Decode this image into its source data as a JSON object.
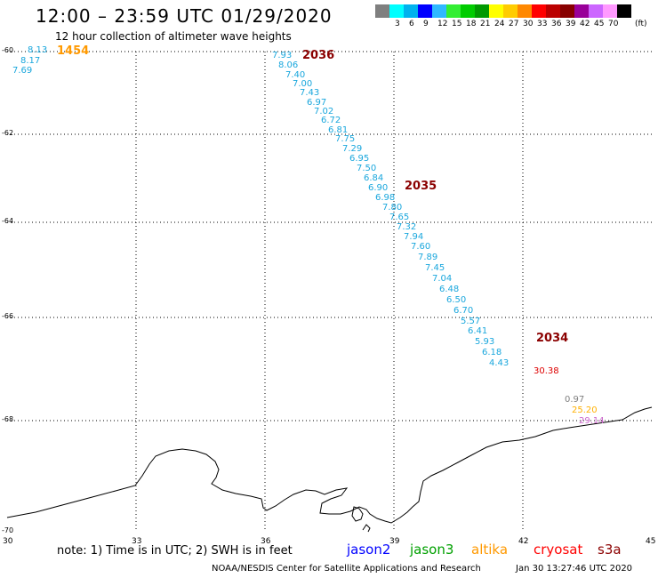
{
  "header": {
    "title": "12:00 – 23:59 UTC 01/29/2020",
    "subtitle": "12 hour collection of altimeter wave heights"
  },
  "colorbar": {
    "unit": "(ft)",
    "bins": [
      {
        "label": "",
        "color": "#7f7f7f"
      },
      {
        "label": "3",
        "color": "#00ffff"
      },
      {
        "label": "6",
        "color": "#00b2ee"
      },
      {
        "label": "9",
        "color": "#0000ff"
      },
      {
        "label": "12",
        "color": "#2fb8ff"
      },
      {
        "label": "15",
        "color": "#33ee33"
      },
      {
        "label": "18",
        "color": "#00cc00"
      },
      {
        "label": "21",
        "color": "#009900"
      },
      {
        "label": "24",
        "color": "#ffff00"
      },
      {
        "label": "27",
        "color": "#ffcc00"
      },
      {
        "label": "30",
        "color": "#ff8800"
      },
      {
        "label": "33",
        "color": "#ff0000"
      },
      {
        "label": "36",
        "color": "#bb0000"
      },
      {
        "label": "39",
        "color": "#880000"
      },
      {
        "label": "42",
        "color": "#990099"
      },
      {
        "label": "45",
        "color": "#cc66ff"
      },
      {
        "label": "70",
        "color": "#ff99ff"
      },
      {
        "label": "",
        "color": "#000000"
      }
    ]
  },
  "axes": {
    "lat_labels": [
      "-60",
      "-62",
      "-64",
      "-66",
      "-68",
      "-70"
    ],
    "lon_labels": [
      "30",
      "33",
      "36",
      "39",
      "42",
      "45"
    ]
  },
  "passes": [
    {
      "label": "1454",
      "color": "#ff9900"
    },
    {
      "label": "2036",
      "color": "#8b0000"
    },
    {
      "label": "2035",
      "color": "#8b0000"
    },
    {
      "label": "2034",
      "color": "#8b0000"
    }
  ],
  "wave_heights": [
    {
      "value": "8.13",
      "color": "#1aa7dd"
    },
    {
      "value": "8.17",
      "color": "#1aa7dd"
    },
    {
      "value": "7.69",
      "color": "#1aa7dd"
    },
    {
      "value": "7.93",
      "color": "#1aa7dd"
    },
    {
      "value": "8.06",
      "color": "#1aa7dd"
    },
    {
      "value": "7.40",
      "color": "#1aa7dd"
    },
    {
      "value": "7.00",
      "color": "#1aa7dd"
    },
    {
      "value": "7.43",
      "color": "#1aa7dd"
    },
    {
      "value": "6.97",
      "color": "#1aa7dd"
    },
    {
      "value": "7.02",
      "color": "#1aa7dd"
    },
    {
      "value": "6.72",
      "color": "#1aa7dd"
    },
    {
      "value": "6.81",
      "color": "#1aa7dd"
    },
    {
      "value": "7.75",
      "color": "#1aa7dd"
    },
    {
      "value": "7.29",
      "color": "#1aa7dd"
    },
    {
      "value": "6.95",
      "color": "#1aa7dd"
    },
    {
      "value": "7.50",
      "color": "#1aa7dd"
    },
    {
      "value": "6.84",
      "color": "#1aa7dd"
    },
    {
      "value": "6.90",
      "color": "#1aa7dd"
    },
    {
      "value": "6.98",
      "color": "#1aa7dd"
    },
    {
      "value": "7.80",
      "color": "#1aa7dd"
    },
    {
      "value": "7.65",
      "color": "#1aa7dd"
    },
    {
      "value": "7.32",
      "color": "#1aa7dd"
    },
    {
      "value": "7.94",
      "color": "#1aa7dd"
    },
    {
      "value": "7.60",
      "color": "#1aa7dd"
    },
    {
      "value": "7.89",
      "color": "#1aa7dd"
    },
    {
      "value": "7.45",
      "color": "#1aa7dd"
    },
    {
      "value": "7.04",
      "color": "#1aa7dd"
    },
    {
      "value": "6.48",
      "color": "#1aa7dd"
    },
    {
      "value": "6.50",
      "color": "#1aa7dd"
    },
    {
      "value": "6.70",
      "color": "#1aa7dd"
    },
    {
      "value": "5.57",
      "color": "#1aa7dd"
    },
    {
      "value": "6.41",
      "color": "#1aa7dd"
    },
    {
      "value": "5.93",
      "color": "#1aa7dd"
    },
    {
      "value": "6.18",
      "color": "#1aa7dd"
    },
    {
      "value": "4.43",
      "color": "#1aa7dd"
    },
    {
      "value": "30.38",
      "color": "#dd0000"
    },
    {
      "value": "0.97",
      "color": "#808080"
    },
    {
      "value": "25.20",
      "color": "#ffb000"
    },
    {
      "value": "29.14",
      "color": "#cc66cc"
    }
  ],
  "footer": {
    "note": "note:  1) Time is in UTC;  2) SWH is in feet",
    "satellites": [
      {
        "name": "jason2",
        "color": "#0000ff"
      },
      {
        "name": "jason3",
        "color": "#00a000"
      },
      {
        "name": "altika",
        "color": "#ff9900"
      },
      {
        "name": "cryosat",
        "color": "#ff0000"
      },
      {
        "name": "s3a",
        "color": "#8b0000"
      }
    ],
    "credit": "NOAA/NESDIS Center for Satellite Applications and Research",
    "timestamp": "Jan 30 13:27:46 UTC 2020"
  }
}
